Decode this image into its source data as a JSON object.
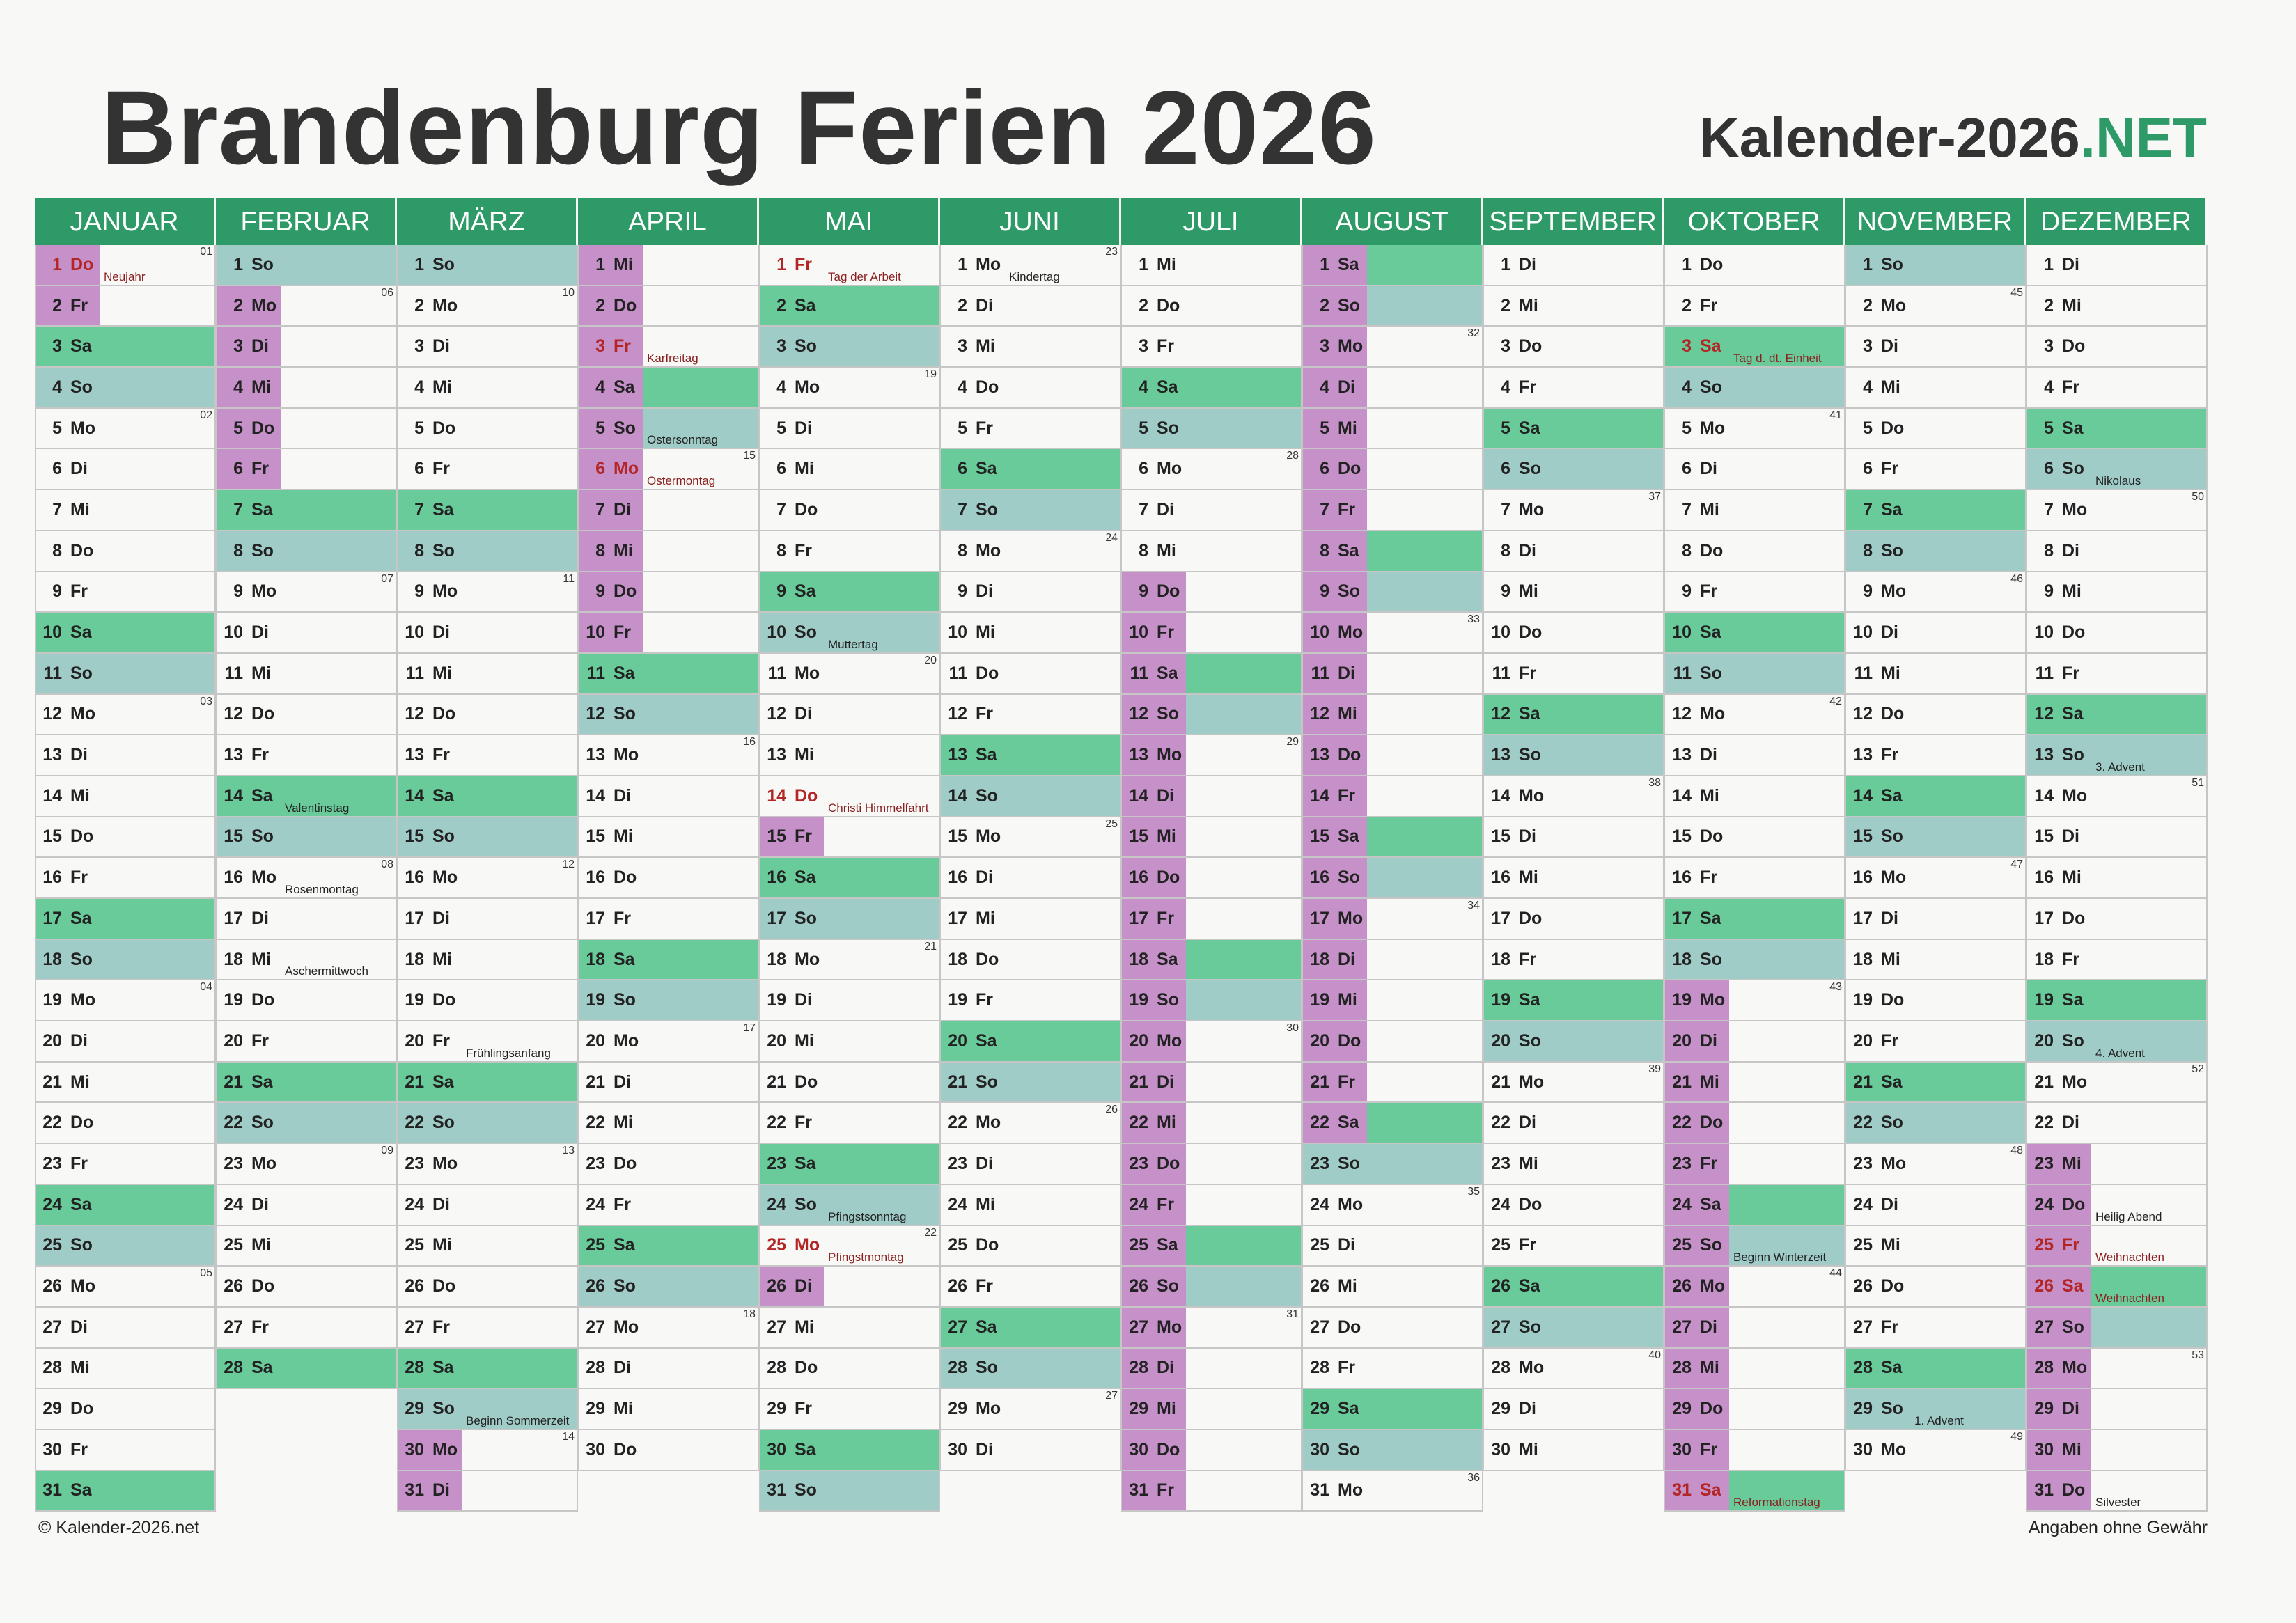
{
  "title": "Brandenburg Ferien 2026",
  "brand": {
    "name": "Kalender-2026",
    "tld": ".NET"
  },
  "footer": {
    "copyright": "© Kalender-2026.net",
    "note": "Angaben ohne Gewähr"
  },
  "year": 2026,
  "weekday_abbr": [
    "So",
    "Mo",
    "Di",
    "Mi",
    "Do",
    "Fr",
    "Sa"
  ],
  "colors": {
    "header": "#2e9a67",
    "saturday": "#69cb9a",
    "sunday": "#a0ccc8",
    "school_holiday": "#c690c9",
    "public_holiday_text": "#b32626"
  },
  "months": [
    {
      "name": "JANUAR"
    },
    {
      "name": "FEBRUAR"
    },
    {
      "name": "MÄRZ"
    },
    {
      "name": "APRIL"
    },
    {
      "name": "MAI"
    },
    {
      "name": "JUNI"
    },
    {
      "name": "JULI"
    },
    {
      "name": "AUGUST"
    },
    {
      "name": "SEPTEMBER"
    },
    {
      "name": "OKTOBER"
    },
    {
      "name": "NOVEMBER"
    },
    {
      "name": "DEZEMBER"
    }
  ],
  "public_holidays": [
    {
      "month": 1,
      "day": 1,
      "name": "Neujahr"
    },
    {
      "month": 4,
      "day": 3,
      "name": "Karfreitag"
    },
    {
      "month": 4,
      "day": 6,
      "name": "Ostermontag"
    },
    {
      "month": 5,
      "day": 1,
      "name": "Tag der Arbeit"
    },
    {
      "month": 5,
      "day": 14,
      "name": "Christi Himmelfahrt"
    },
    {
      "month": 5,
      "day": 25,
      "name": "Pfingstmontag"
    },
    {
      "month": 10,
      "day": 3,
      "name": "Tag d. dt. Einheit"
    },
    {
      "month": 10,
      "day": 31,
      "name": "Reformationstag"
    },
    {
      "month": 12,
      "day": 25,
      "name": "Weihnachten"
    },
    {
      "month": 12,
      "day": 26,
      "name": "Weihnachten"
    }
  ],
  "observances": [
    {
      "month": 2,
      "day": 14,
      "name": "Valentinstag"
    },
    {
      "month": 2,
      "day": 16,
      "name": "Rosenmontag"
    },
    {
      "month": 2,
      "day": 18,
      "name": "Aschermittwoch"
    },
    {
      "month": 3,
      "day": 20,
      "name": "Frühlingsanfang"
    },
    {
      "month": 3,
      "day": 29,
      "name": "Beginn Sommerzeit"
    },
    {
      "month": 4,
      "day": 5,
      "name": "Ostersonntag"
    },
    {
      "month": 5,
      "day": 10,
      "name": "Muttertag"
    },
    {
      "month": 5,
      "day": 24,
      "name": "Pfingstsonntag"
    },
    {
      "month": 6,
      "day": 1,
      "name": "Kindertag"
    },
    {
      "month": 10,
      "day": 25,
      "name": "Beginn Winterzeit"
    },
    {
      "month": 11,
      "day": 29,
      "name": "1. Advent"
    },
    {
      "month": 12,
      "day": 6,
      "name": "Nikolaus"
    },
    {
      "month": 12,
      "day": 13,
      "name": "3. Advent"
    },
    {
      "month": 12,
      "day": 20,
      "name": "4. Advent"
    },
    {
      "month": 12,
      "day": 24,
      "name": "Heilig Abend"
    },
    {
      "month": 12,
      "day": 31,
      "name": "Silvester"
    }
  ],
  "school_holidays": [
    {
      "from": [
        1,
        1
      ],
      "to": [
        1,
        2
      ]
    },
    {
      "from": [
        2,
        2
      ],
      "to": [
        2,
        6
      ]
    },
    {
      "from": [
        3,
        30
      ],
      "to": [
        4,
        10
      ]
    },
    {
      "from": [
        5,
        15
      ],
      "to": [
        5,
        15
      ]
    },
    {
      "from": [
        5,
        26
      ],
      "to": [
        5,
        26
      ]
    },
    {
      "from": [
        7,
        9
      ],
      "to": [
        8,
        22
      ]
    },
    {
      "from": [
        10,
        19
      ],
      "to": [
        10,
        31
      ]
    },
    {
      "from": [
        12,
        23
      ],
      "to": [
        12,
        31
      ]
    }
  ]
}
